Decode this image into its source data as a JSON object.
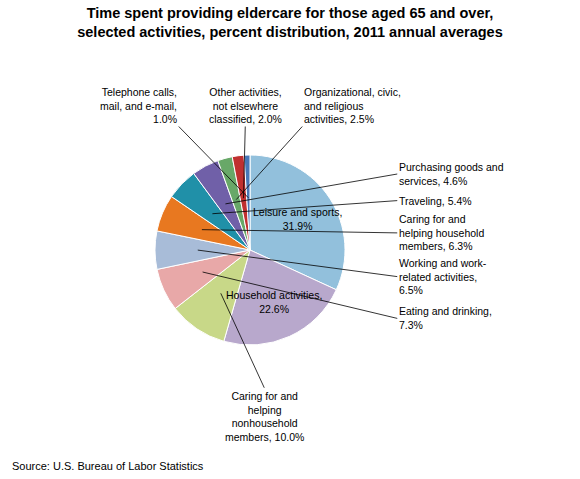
{
  "chart_data": {
    "type": "pie",
    "title": "Time spent providing eldercare for those aged 65 and over,\nselected activities, percent distribution, 2011 annual averages",
    "source": "Source: U.S. Bureau of Labor Statistics",
    "categories": [
      "Leisure and sports,\n31.9%",
      "Household activities,\n22.6%",
      "Caring for and\nhelping\nnonhousehold\nmembers, 10.0%",
      "Eating and drinking,\n7.3%",
      "Working and work-\nrelated activities,\n6.5%",
      "Caring for and\nhelping household\nmembers, 6.3%",
      "Traveling, 5.4%",
      "Purchasing goods and\nservices, 4.6%",
      "Organizational, civic,\nand religious\nactivities, 2.5%",
      "Other activities,\nnot elsewhere\nclassified, 2.0%",
      "Telephone calls,\nmail, and e-mail,\n1.0%"
    ],
    "values": [
      31.9,
      22.6,
      10.0,
      7.3,
      6.5,
      6.3,
      5.4,
      4.6,
      2.5,
      2.0,
      1.0
    ],
    "colors": [
      "#92C0DC",
      "#B8A8CC",
      "#C8D888",
      "#E8A8A8",
      "#A8BCD8",
      "#E87820",
      "#2090A8",
      "#7060A8",
      "#68A868",
      "#C03030",
      "#4878B8"
    ]
  }
}
